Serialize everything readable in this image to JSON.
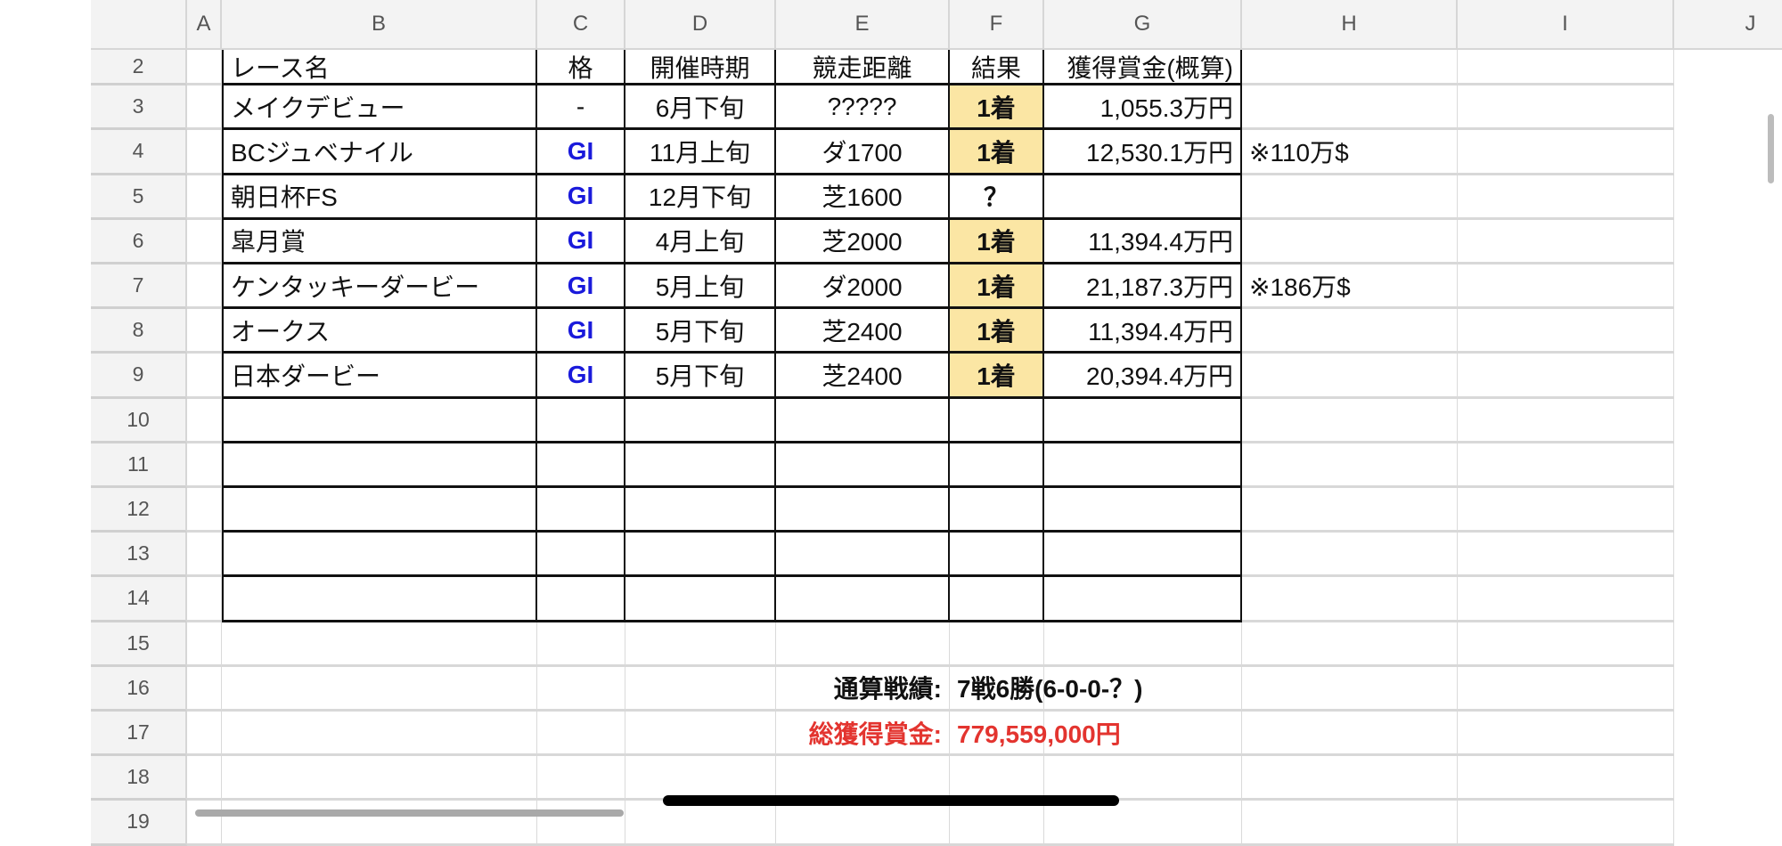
{
  "columns": [
    "A",
    "B",
    "C",
    "D",
    "E",
    "F",
    "G",
    "H",
    "I",
    "J"
  ],
  "row_numbers": [
    "2",
    "3",
    "4",
    "5",
    "6",
    "7",
    "8",
    "9",
    "10",
    "11",
    "12",
    "13",
    "14",
    "15",
    "16",
    "17",
    "18",
    "19"
  ],
  "table": {
    "headers": [
      "レース名",
      "格",
      "開催時期",
      "競走距離",
      "結果",
      "獲得賞金(概算)"
    ],
    "rows": [
      {
        "name": "メイクデビュー",
        "grade": "-",
        "period": "6月下旬",
        "distance": "?????",
        "result": "1着",
        "prize": "1,055.3万円",
        "note": ""
      },
      {
        "name": "BCジュベナイル",
        "grade": "GI",
        "period": "11月上旬",
        "distance": "ダ1700",
        "result": "1着",
        "prize": "12,530.1万円",
        "note": "※110万$"
      },
      {
        "name": "朝日杯FS",
        "grade": "GI",
        "period": "12月下旬",
        "distance": "芝1600",
        "result": "？",
        "prize": "",
        "note": ""
      },
      {
        "name": "皐月賞",
        "grade": "GI",
        "period": "4月上旬",
        "distance": "芝2000",
        "result": "1着",
        "prize": "11,394.4万円",
        "note": ""
      },
      {
        "name": "ケンタッキーダービー",
        "grade": "GI",
        "period": "5月上旬",
        "distance": "ダ2000",
        "result": "1着",
        "prize": "21,187.3万円",
        "note": "※186万$"
      },
      {
        "name": "オークス",
        "grade": "GI",
        "period": "5月下旬",
        "distance": "芝2400",
        "result": "1着",
        "prize": "11,394.4万円",
        "note": ""
      },
      {
        "name": "日本ダービー",
        "grade": "GI",
        "period": "5月下旬",
        "distance": "芝2400",
        "result": "1着",
        "prize": "20,394.4万円",
        "note": ""
      }
    ]
  },
  "summary": {
    "record_label": "通算戦績:",
    "record_value": "7戦6勝(6-0-0-？)",
    "total_label": "総獲得賞金:",
    "total_value": "779,559,000円"
  },
  "colors": {
    "win_fill": "#fbe6a4",
    "grade": "#1a1adb",
    "total": "#e3342f"
  }
}
